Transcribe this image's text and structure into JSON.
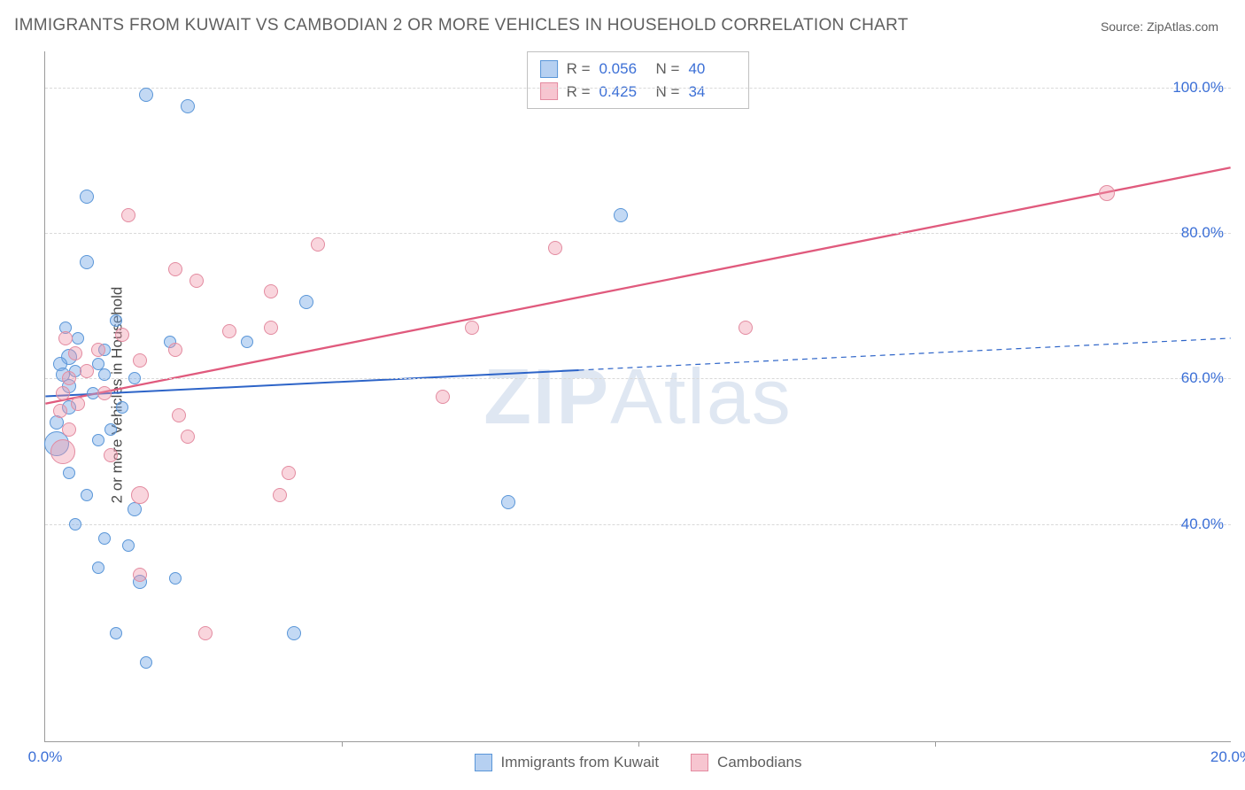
{
  "title": "IMMIGRANTS FROM KUWAIT VS CAMBODIAN 2 OR MORE VEHICLES IN HOUSEHOLD CORRELATION CHART",
  "source": "Source: ZipAtlas.com",
  "ylabel": "2 or more Vehicles in Household",
  "watermark_a": "ZIP",
  "watermark_b": "Atlas",
  "chart": {
    "type": "scatter",
    "xlim": [
      0,
      20
    ],
    "ylim": [
      10,
      105
    ],
    "xticks": [
      {
        "v": 0,
        "l": "0.0%"
      },
      {
        "v": 20,
        "l": "20.0%"
      }
    ],
    "xminor": [
      5,
      10,
      15
    ],
    "yticks": [
      {
        "v": 40,
        "l": "40.0%"
      },
      {
        "v": 60,
        "l": "60.0%"
      },
      {
        "v": 80,
        "l": "80.0%"
      },
      {
        "v": 100,
        "l": "100.0%"
      }
    ],
    "grid_color": "#d9d9d9",
    "axis_color": "#9a9a9a",
    "background_color": "#ffffff",
    "series": [
      {
        "name": "Immigrants from Kuwait",
        "color_fill": "rgba(122,170,230,0.45)",
        "color_stroke": "#5a96d8",
        "R": "0.056",
        "N": "40",
        "trend": {
          "x1": 0,
          "y1": 57.5,
          "x2": 20,
          "y2": 65.5,
          "color": "#2d64c8",
          "width": 2,
          "dash_after_x": 9.0
        },
        "points": [
          {
            "x": 1.7,
            "y": 99,
            "r": 8
          },
          {
            "x": 2.4,
            "y": 97.5,
            "r": 8
          },
          {
            "x": 0.7,
            "y": 85,
            "r": 8
          },
          {
            "x": 9.7,
            "y": 82.5,
            "r": 8
          },
          {
            "x": 0.7,
            "y": 76,
            "r": 8
          },
          {
            "x": 1.2,
            "y": 68,
            "r": 7
          },
          {
            "x": 4.4,
            "y": 70.5,
            "r": 8
          },
          {
            "x": 2.1,
            "y": 65,
            "r": 7
          },
          {
            "x": 1.0,
            "y": 64,
            "r": 7
          },
          {
            "x": 0.4,
            "y": 63,
            "r": 9
          },
          {
            "x": 0.25,
            "y": 62,
            "r": 8
          },
          {
            "x": 0.4,
            "y": 59,
            "r": 8
          },
          {
            "x": 0.3,
            "y": 60.5,
            "r": 8
          },
          {
            "x": 1.0,
            "y": 60.5,
            "r": 7
          },
          {
            "x": 1.5,
            "y": 60,
            "r": 7
          },
          {
            "x": 0.4,
            "y": 56,
            "r": 8
          },
          {
            "x": 0.2,
            "y": 54,
            "r": 8
          },
          {
            "x": 1.1,
            "y": 53,
            "r": 7
          },
          {
            "x": 0.2,
            "y": 51,
            "r": 14
          },
          {
            "x": 0.9,
            "y": 51.5,
            "r": 7
          },
          {
            "x": 7.8,
            "y": 43,
            "r": 8
          },
          {
            "x": 1.5,
            "y": 42,
            "r": 8
          },
          {
            "x": 1.0,
            "y": 38,
            "r": 7
          },
          {
            "x": 1.4,
            "y": 37,
            "r": 7
          },
          {
            "x": 0.9,
            "y": 34,
            "r": 7
          },
          {
            "x": 1.6,
            "y": 32,
            "r": 8
          },
          {
            "x": 2.2,
            "y": 32.5,
            "r": 7
          },
          {
            "x": 1.2,
            "y": 25,
            "r": 7
          },
          {
            "x": 4.2,
            "y": 25,
            "r": 8
          },
          {
            "x": 1.7,
            "y": 21,
            "r": 7
          },
          {
            "x": 0.4,
            "y": 47,
            "r": 7
          },
          {
            "x": 0.35,
            "y": 67,
            "r": 7
          },
          {
            "x": 0.5,
            "y": 61,
            "r": 7
          },
          {
            "x": 0.8,
            "y": 58,
            "r": 7
          },
          {
            "x": 0.55,
            "y": 65.5,
            "r": 7
          },
          {
            "x": 0.9,
            "y": 62,
            "r": 7
          },
          {
            "x": 1.3,
            "y": 56,
            "r": 7
          },
          {
            "x": 3.4,
            "y": 65,
            "r": 7
          },
          {
            "x": 0.7,
            "y": 44,
            "r": 7
          },
          {
            "x": 0.5,
            "y": 40,
            "r": 7
          }
        ]
      },
      {
        "name": "Cambodians",
        "color_fill": "rgba(240,150,170,0.40)",
        "color_stroke": "#e38ba0",
        "R": "0.425",
        "N": "34",
        "trend": {
          "x1": 0,
          "y1": 56.5,
          "x2": 20,
          "y2": 89,
          "color": "#e05a7d",
          "width": 2.3,
          "dash_after_x": null
        },
        "points": [
          {
            "x": 1.4,
            "y": 82.5,
            "r": 8
          },
          {
            "x": 4.6,
            "y": 78.5,
            "r": 8
          },
          {
            "x": 8.6,
            "y": 78,
            "r": 8
          },
          {
            "x": 17.9,
            "y": 85.5,
            "r": 9
          },
          {
            "x": 2.2,
            "y": 75,
            "r": 8
          },
          {
            "x": 2.55,
            "y": 73.5,
            "r": 8
          },
          {
            "x": 3.8,
            "y": 72,
            "r": 8
          },
          {
            "x": 3.1,
            "y": 66.5,
            "r": 8
          },
          {
            "x": 3.8,
            "y": 67,
            "r": 8
          },
          {
            "x": 7.2,
            "y": 67,
            "r": 8
          },
          {
            "x": 11.8,
            "y": 67,
            "r": 8
          },
          {
            "x": 2.2,
            "y": 64,
            "r": 8
          },
          {
            "x": 0.35,
            "y": 65.5,
            "r": 8
          },
          {
            "x": 0.9,
            "y": 64,
            "r": 8
          },
          {
            "x": 1.6,
            "y": 62.5,
            "r": 8
          },
          {
            "x": 0.4,
            "y": 60,
            "r": 8
          },
          {
            "x": 0.3,
            "y": 58,
            "r": 8
          },
          {
            "x": 0.55,
            "y": 56.5,
            "r": 8
          },
          {
            "x": 6.7,
            "y": 57.5,
            "r": 8
          },
          {
            "x": 2.25,
            "y": 55,
            "r": 8
          },
          {
            "x": 0.25,
            "y": 55.5,
            "r": 8
          },
          {
            "x": 2.4,
            "y": 52,
            "r": 8
          },
          {
            "x": 0.3,
            "y": 50,
            "r": 14
          },
          {
            "x": 1.1,
            "y": 49.5,
            "r": 8
          },
          {
            "x": 4.1,
            "y": 47,
            "r": 8
          },
          {
            "x": 1.6,
            "y": 44,
            "r": 10
          },
          {
            "x": 3.95,
            "y": 44,
            "r": 8
          },
          {
            "x": 1.6,
            "y": 33,
            "r": 8
          },
          {
            "x": 2.7,
            "y": 25,
            "r": 8
          },
          {
            "x": 0.4,
            "y": 53,
            "r": 8
          },
          {
            "x": 0.7,
            "y": 61,
            "r": 8
          },
          {
            "x": 1.0,
            "y": 58,
            "r": 8
          },
          {
            "x": 1.3,
            "y": 66,
            "r": 8
          },
          {
            "x": 0.5,
            "y": 63.5,
            "r": 8
          }
        ]
      }
    ]
  },
  "legend_top": {
    "rows": [
      {
        "sw": "blue",
        "r_label": "R =",
        "r_val": "0.056",
        "n_label": "N =",
        "n_val": "40"
      },
      {
        "sw": "pink",
        "r_label": "R =",
        "r_val": "0.425",
        "n_label": "N =",
        "n_val": "34"
      }
    ]
  },
  "legend_bottom": [
    {
      "sw": "blue",
      "label": "Immigrants from Kuwait"
    },
    {
      "sw": "pink",
      "label": "Cambodians"
    }
  ]
}
